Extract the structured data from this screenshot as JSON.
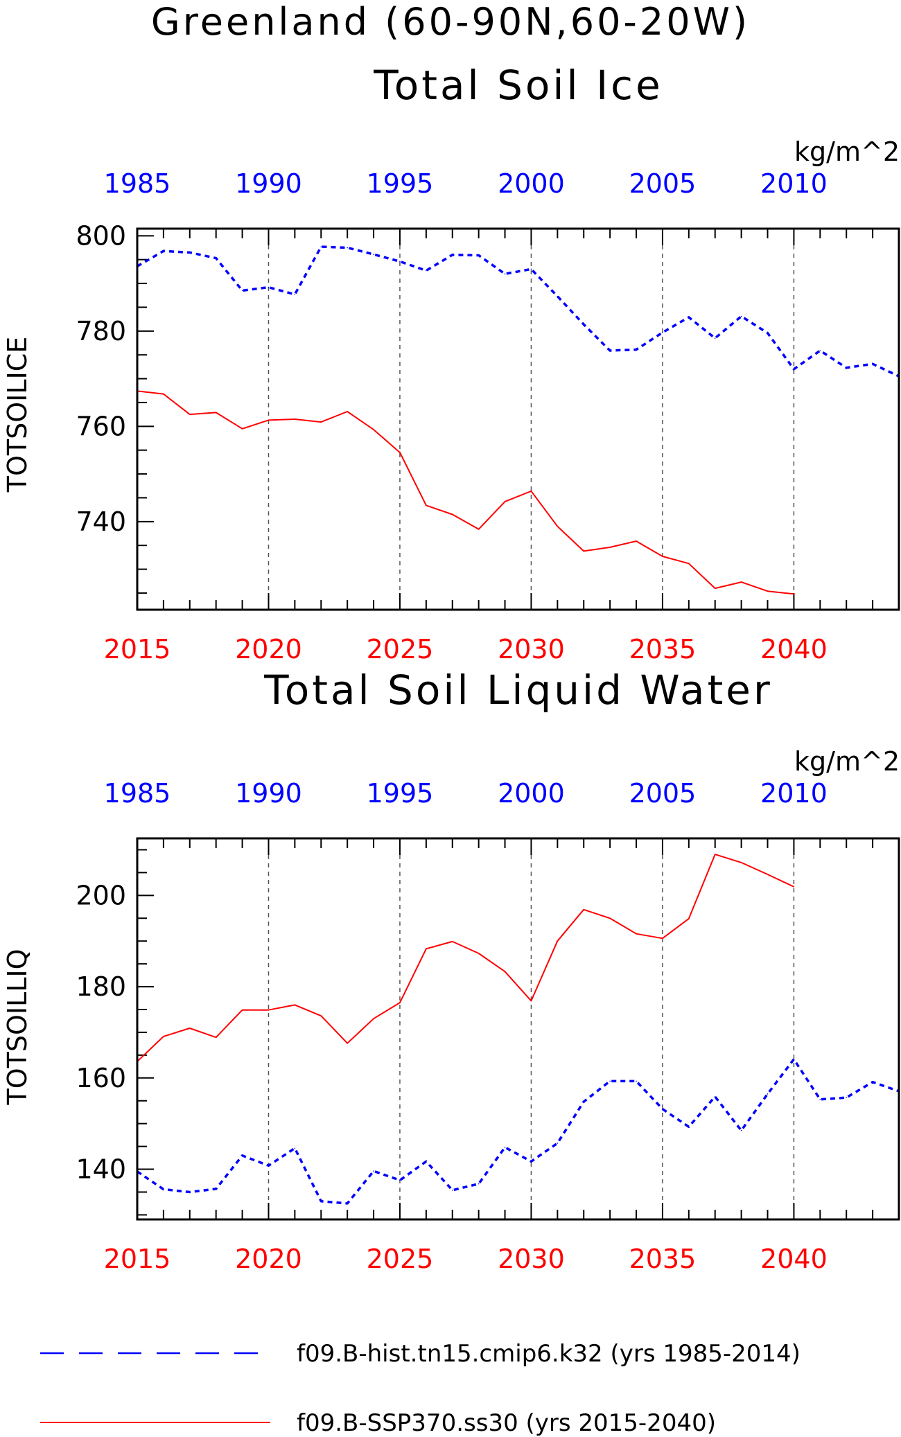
{
  "title_lines": [
    "Greenland (60-90N,60-20W)"
  ],
  "colors": {
    "hist": "#0000ff",
    "ssp": "#ff0000",
    "frame": "#000000",
    "grid": "#555555"
  },
  "legend": [
    {
      "label": "f09.B-hist.tn15.cmip6.k32 (yrs 1985-2014)",
      "color": "#0000ff",
      "style": "dashed"
    },
    {
      "label": "f09.B-SSP370.ss30 (yrs 2015-2040)",
      "color": "#ff0000",
      "style": "solid"
    }
  ],
  "chart_data": [
    {
      "type": "line",
      "title": "Total Soil Ice",
      "ylabel": "TOTSOILICE",
      "units": "kg/m^2",
      "ylim": [
        721.5,
        801.5
      ],
      "yticks": [
        740,
        760,
        780,
        800
      ],
      "bottom_x": {
        "lim": [
          2015,
          2044
        ],
        "ticks": [
          2015,
          2020,
          2025,
          2030,
          2035,
          2040
        ],
        "color": "#ff0000"
      },
      "top_x": {
        "lim": [
          1985,
          2014
        ],
        "ticks": [
          1985,
          1990,
          1995,
          2000,
          2005,
          2010
        ],
        "color": "#0000ff"
      },
      "grid": "vertical-dashed-at-major-ticks",
      "series": [
        {
          "name": "f09.B-hist.tn15.cmip6.k32",
          "axis": "top",
          "style": "dashed",
          "x": [
            1985,
            1986,
            1987,
            1988,
            1989,
            1990,
            1991,
            1992,
            1993,
            1994,
            1995,
            1996,
            1997,
            1998,
            1999,
            2000,
            2001,
            2002,
            2003,
            2004,
            2005,
            2006,
            2007,
            2008,
            2009,
            2010,
            2011,
            2012,
            2013,
            2014
          ],
          "values": [
            793.6,
            796.8,
            796.5,
            795.3,
            788.5,
            789.2,
            787.7,
            797.7,
            797.5,
            796.1,
            794.6,
            792.7,
            796.0,
            795.9,
            792.0,
            793.0,
            787.3,
            781.4,
            775.9,
            776.1,
            779.7,
            782.9,
            778.5,
            783.1,
            779.6,
            772.0,
            775.9,
            772.3,
            773.1,
            770.5
          ]
        },
        {
          "name": "f09.B-SSP370.ss30",
          "axis": "bottom",
          "style": "solid",
          "x": [
            2015,
            2016,
            2017,
            2018,
            2019,
            2020,
            2021,
            2022,
            2023,
            2024,
            2025,
            2026,
            2027,
            2028,
            2029,
            2030,
            2031,
            2032,
            2033,
            2034,
            2035,
            2036,
            2037,
            2038,
            2039,
            2040
          ],
          "values": [
            767.4,
            766.8,
            762.5,
            762.9,
            759.5,
            761.3,
            761.5,
            760.9,
            763.1,
            759.3,
            754.5,
            743.4,
            741.5,
            738.4,
            744.2,
            746.4,
            739.0,
            733.8,
            734.6,
            735.9,
            732.7,
            731.2,
            726.0,
            727.3,
            725.4,
            724.8
          ]
        }
      ]
    },
    {
      "type": "line",
      "title": "Total Soil Liquid Water",
      "ylabel": "TOTSOILLIQ",
      "units": "kg/m^2",
      "ylim": [
        129,
        212.5
      ],
      "yticks": [
        140,
        160,
        180,
        200
      ],
      "bottom_x": {
        "lim": [
          2015,
          2044
        ],
        "ticks": [
          2015,
          2020,
          2025,
          2030,
          2035,
          2040
        ],
        "color": "#ff0000"
      },
      "top_x": {
        "lim": [
          1985,
          2014
        ],
        "ticks": [
          1985,
          1990,
          1995,
          2000,
          2005,
          2010
        ],
        "color": "#0000ff"
      },
      "grid": "vertical-dashed-at-major-ticks",
      "series": [
        {
          "name": "f09.B-hist.tn15.cmip6.k32",
          "axis": "top",
          "style": "dashed",
          "x": [
            1985,
            1986,
            1987,
            1988,
            1989,
            1990,
            1991,
            1992,
            1993,
            1994,
            1995,
            1996,
            1997,
            1998,
            1999,
            2000,
            2001,
            2002,
            2003,
            2004,
            2005,
            2006,
            2007,
            2008,
            2009,
            2010,
            2011,
            2012,
            2013,
            2014
          ],
          "values": [
            139.5,
            135.6,
            135.0,
            135.7,
            143.0,
            140.8,
            144.6,
            133.0,
            132.5,
            139.6,
            137.6,
            141.7,
            135.4,
            136.8,
            144.8,
            141.7,
            145.7,
            154.8,
            159.3,
            159.3,
            153.2,
            149.3,
            155.9,
            148.5,
            156.5,
            164.1,
            155.3,
            155.7,
            159.1,
            157.1
          ]
        },
        {
          "name": "f09.B-SSP370.ss30",
          "axis": "bottom",
          "style": "solid",
          "x": [
            2015,
            2016,
            2017,
            2018,
            2019,
            2020,
            2021,
            2022,
            2023,
            2024,
            2025,
            2026,
            2027,
            2028,
            2029,
            2030,
            2031,
            2032,
            2033,
            2034,
            2035,
            2036,
            2037,
            2038,
            2039,
            2040
          ],
          "values": [
            163.6,
            169.1,
            170.9,
            168.9,
            174.9,
            174.9,
            176.0,
            173.6,
            167.6,
            173.0,
            176.5,
            188.3,
            189.9,
            187.3,
            183.3,
            176.9,
            190.0,
            196.9,
            195.0,
            191.6,
            190.6,
            194.9,
            209.0,
            207.2,
            204.6,
            201.9
          ]
        }
      ]
    }
  ]
}
